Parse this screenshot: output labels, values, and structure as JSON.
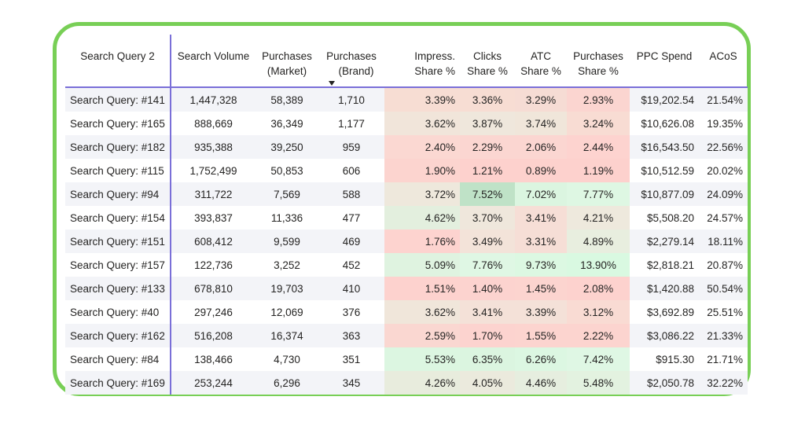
{
  "colors": {
    "frame": "#78cf56",
    "header_rule": "#7a6fd8",
    "heat_low": "#fbdad5",
    "heat_mid": "#f1eee4",
    "heat_high": "#dff7e4",
    "heat_peak": "#bfe5c9"
  },
  "columns": [
    {
      "l1": "Search Query 2",
      "l2": ""
    },
    {
      "l1": "Search Volume",
      "l2": ""
    },
    {
      "l1": "Purchases",
      "l2": "(Market)"
    },
    {
      "l1": "Purchases",
      "l2": "(Brand)"
    },
    {
      "l1": "Impress.",
      "l2": "Share %"
    },
    {
      "l1": "Clicks",
      "l2": "Share %"
    },
    {
      "l1": "ATC",
      "l2": "Share %"
    },
    {
      "l1": "Purchases",
      "l2": "Share %"
    },
    {
      "l1": "PPC Spend",
      "l2": ""
    },
    {
      "l1": "ACoS",
      "l2": ""
    }
  ],
  "sort_icon": "sort-descending-icon",
  "rows": [
    {
      "query": "Search Query: #141",
      "volume": "1,447,328",
      "market": "58,389",
      "brand": "1,710",
      "impress": "3.39%",
      "clicks": "3.36%",
      "atc": "3.29%",
      "purch": "2.93%",
      "ppc": "$19,202.54",
      "acos": "21.54%",
      "h": [
        "#f7ddd3",
        "#f7ddd3",
        "#f6dcd4",
        "#fbd5d0"
      ]
    },
    {
      "query": "Search Query: #165",
      "volume": "888,669",
      "market": "36,349",
      "brand": "1,177",
      "impress": "3.62%",
      "clicks": "3.87%",
      "atc": "3.74%",
      "purch": "3.24%",
      "ppc": "$10,626.08",
      "acos": "19.35%",
      "h": [
        "#f1e5da",
        "#efe7dc",
        "#f0e6da",
        "#f8dcd3"
      ]
    },
    {
      "query": "Search Query: #182",
      "volume": "935,388",
      "market": "39,250",
      "brand": "959",
      "impress": "2.40%",
      "clicks": "2.29%",
      "atc": "2.06%",
      "purch": "2.44%",
      "ppc": "$16,543.50",
      "acos": "22.56%",
      "h": [
        "#fbd8d2",
        "#fbd6d1",
        "#fbd6d1",
        "#fdd3cf"
      ]
    },
    {
      "query": "Search Query: #115",
      "volume": "1,752,499",
      "market": "50,853",
      "brand": "606",
      "impress": "1.90%",
      "clicks": "1.21%",
      "atc": "0.89%",
      "purch": "1.19%",
      "ppc": "$10,512.59",
      "acos": "20.02%",
      "h": [
        "#fcd4cf",
        "#fdd1cd",
        "#fdd1cd",
        "#fdd1cd"
      ]
    },
    {
      "query": "Search Query: #94",
      "volume": "311,722",
      "market": "7,569",
      "brand": "588",
      "impress": "3.72%",
      "clicks": "7.52%",
      "atc": "7.02%",
      "purch": "7.77%",
      "ppc": "$10,877.09",
      "acos": "24.09%",
      "h": [
        "#eee8dc",
        "#bfe2c7",
        "#dbf5e0",
        "#def7e3"
      ]
    },
    {
      "query": "Search Query: #154",
      "volume": "393,837",
      "market": "11,336",
      "brand": "477",
      "impress": "4.62%",
      "clicks": "3.70%",
      "atc": "3.41%",
      "purch": "4.21%",
      "ppc": "$5,508.20",
      "acos": "24.57%",
      "h": [
        "#e3efde",
        "#efe7dc",
        "#f6ded6",
        "#eee9dd"
      ]
    },
    {
      "query": "Search Query: #151",
      "volume": "608,412",
      "market": "9,599",
      "brand": "469",
      "impress": "1.76%",
      "clicks": "3.49%",
      "atc": "3.31%",
      "purch": "4.89%",
      "ppc": "$2,279.14",
      "acos": "18.11%",
      "h": [
        "#fdd3cf",
        "#f3e3d9",
        "#f6ded6",
        "#e8eedf"
      ]
    },
    {
      "query": "Search Query: #157",
      "volume": "122,736",
      "market": "3,252",
      "brand": "452",
      "impress": "5.09%",
      "clicks": "7.76%",
      "atc": "9.73%",
      "purch": "13.90%",
      "ppc": "$2,818.21",
      "acos": "20.87%",
      "h": [
        "#dff3e0",
        "#dff7e4",
        "#dcf8e2",
        "#d9f9e1"
      ]
    },
    {
      "query": "Search Query: #133",
      "volume": "678,810",
      "market": "19,703",
      "brand": "410",
      "impress": "1.51%",
      "clicks": "1.40%",
      "atc": "1.45%",
      "purch": "2.08%",
      "ppc": "$1,420.88",
      "acos": "50.54%",
      "h": [
        "#fdd2ce",
        "#fcd3cf",
        "#fcd4cf",
        "#fdd2ce"
      ]
    },
    {
      "query": "Search Query: #40",
      "volume": "297,246",
      "market": "12,069",
      "brand": "376",
      "impress": "3.62%",
      "clicks": "3.41%",
      "atc": "3.39%",
      "purch": "3.12%",
      "ppc": "$3,692.89",
      "acos": "25.51%",
      "h": [
        "#f0e6da",
        "#f4e1d8",
        "#f4e1d8",
        "#f9dbd3"
      ]
    },
    {
      "query": "Search Query: #162",
      "volume": "516,208",
      "market": "16,374",
      "brand": "363",
      "impress": "2.59%",
      "clicks": "1.70%",
      "atc": "1.55%",
      "purch": "2.22%",
      "ppc": "$3,086.22",
      "acos": "21.33%",
      "h": [
        "#fad7d1",
        "#fcd3cf",
        "#fcd4cf",
        "#fcd4cf"
      ]
    },
    {
      "query": "Search Query: #84",
      "volume": "138,466",
      "market": "4,730",
      "brand": "351",
      "impress": "5.53%",
      "clicks": "6.35%",
      "atc": "6.26%",
      "purch": "7.42%",
      "ppc": "$915.30",
      "acos": "21.71%",
      "h": [
        "#dcf6e1",
        "#dbf5e0",
        "#dcf7e2",
        "#dff7e4"
      ]
    },
    {
      "query": "Search Query: #169",
      "volume": "253,244",
      "market": "6,296",
      "brand": "345",
      "impress": "4.26%",
      "clicks": "4.05%",
      "atc": "4.46%",
      "purch": "5.48%",
      "ppc": "$2,050.78",
      "acos": "32.22%",
      "h": [
        "#e8ecdd",
        "#ebeadd",
        "#e6eedf",
        "#e3f2e0"
      ]
    }
  ]
}
